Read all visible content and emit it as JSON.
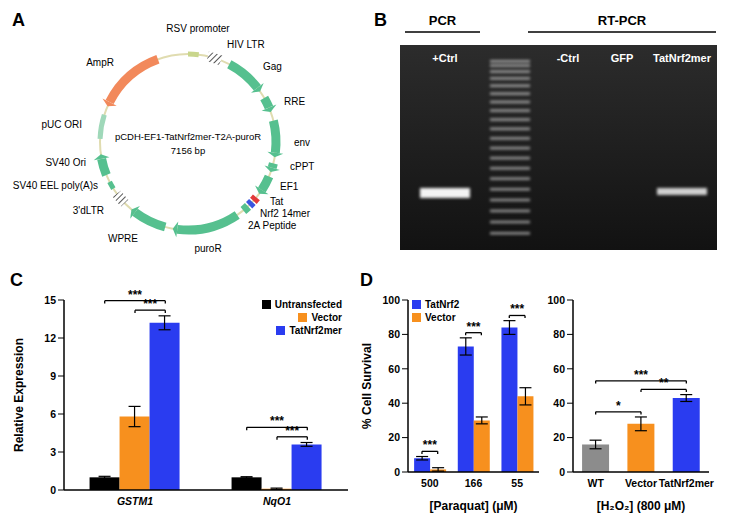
{
  "panel_labels": [
    "A",
    "B",
    "C",
    "D"
  ],
  "plasmid": {
    "name": "pCDH-EF1-TatNrf2mer-T2A-puroR",
    "size": "7156 bp",
    "features": [
      "RSV promoter",
      "HIV LTR",
      "Gag",
      "RRE",
      "env",
      "cPPT",
      "EF1",
      "Tat",
      "Nrf2 14mer",
      "2A Peptide",
      "puroR",
      "WPRE",
      "3'dLTR",
      "SV40 EEL poly(A)s",
      "SV40 Ori",
      "pUC ORI",
      "AmpR"
    ]
  },
  "gel": {
    "groups": [
      {
        "label": "PCR",
        "lanes": [
          "+Ctrl"
        ]
      },
      {
        "label": "RT-PCR",
        "lanes": [
          "-Ctrl",
          "GFP",
          "TatNrf2mer"
        ]
      }
    ],
    "ladder": true,
    "lanes": [
      {
        "label": "+Ctrl",
        "band": true
      },
      {
        "label": "-Ctrl",
        "band": false
      },
      {
        "label": "GFP",
        "band": false
      },
      {
        "label": "TatNrf2mer",
        "band": true
      }
    ]
  },
  "chart_data": [
    {
      "type": "bar",
      "ylabel": "Relative Expression",
      "categories": [
        "GSTM1",
        "NqO1"
      ],
      "series": [
        {
          "name": "Untransfected",
          "color": "#000000",
          "values": [
            1,
            1
          ],
          "errors": [
            0.08,
            0.05
          ]
        },
        {
          "name": "Vector",
          "color": "#f7901e",
          "values": [
            5.8,
            0.1
          ],
          "errors": [
            0.8,
            0.05
          ]
        },
        {
          "name": "TatNrf2mer",
          "color": "#2a3cf0",
          "values": [
            13.2,
            3.6
          ],
          "errors": [
            0.55,
            0.15
          ]
        }
      ],
      "ylim": [
        0,
        15
      ],
      "yticks": [
        0,
        3,
        6,
        9,
        12,
        15
      ],
      "legend": "upper right",
      "significance": [
        {
          "category": "GSTM1",
          "from": "Vector",
          "to": "TatNrf2mer",
          "label": "***"
        },
        {
          "category": "GSTM1",
          "from": "Untransfected",
          "to": "TatNrf2mer",
          "label": "***"
        },
        {
          "category": "NqO1",
          "from": "Vector",
          "to": "TatNrf2mer",
          "label": "***"
        },
        {
          "category": "NqO1",
          "from": "Untransfected",
          "to": "TatNrf2mer",
          "label": "***"
        }
      ]
    },
    {
      "type": "bar",
      "xlabel": "[Paraquat] (μM)",
      "ylabel": "% Cell Survival",
      "categories": [
        "500",
        "166",
        "55"
      ],
      "series": [
        {
          "name": "TatNrf2",
          "color": "#2a3cf0",
          "values": [
            8,
            73,
            84
          ],
          "errors": [
            1,
            5,
            4
          ]
        },
        {
          "name": "Vector",
          "color": "#f7901e",
          "values": [
            1.5,
            30,
            44
          ],
          "errors": [
            1,
            2,
            5
          ]
        }
      ],
      "ylim": [
        0,
        100
      ],
      "yticks": [
        0,
        20,
        40,
        60,
        80,
        100
      ],
      "legend": "upper left",
      "significance": [
        {
          "category": "500",
          "from": "TatNrf2",
          "to": "Vector",
          "label": "***"
        },
        {
          "category": "166",
          "from": "TatNrf2",
          "to": "Vector",
          "label": "***"
        },
        {
          "category": "55",
          "from": "TatNrf2",
          "to": "Vector",
          "label": "***"
        }
      ]
    },
    {
      "type": "bar",
      "xlabel": "[H₂O₂] (800 μM)",
      "categories": [
        "WT",
        "Vector",
        "TatNrf2mer"
      ],
      "values": [
        16,
        28,
        43
      ],
      "errors": [
        2.5,
        4,
        2
      ],
      "colors": [
        "#8c8c8c",
        "#f7901e",
        "#2a3cf0"
      ],
      "ylim": [
        0,
        100
      ],
      "yticks": [
        0,
        20,
        40,
        60,
        80,
        100
      ],
      "significance": [
        {
          "from": "WT",
          "to": "Vector",
          "label": "*"
        },
        {
          "from": "Vector",
          "to": "TatNrf2mer",
          "label": "**"
        },
        {
          "from": "WT",
          "to": "TatNrf2mer",
          "label": "***"
        }
      ]
    }
  ]
}
